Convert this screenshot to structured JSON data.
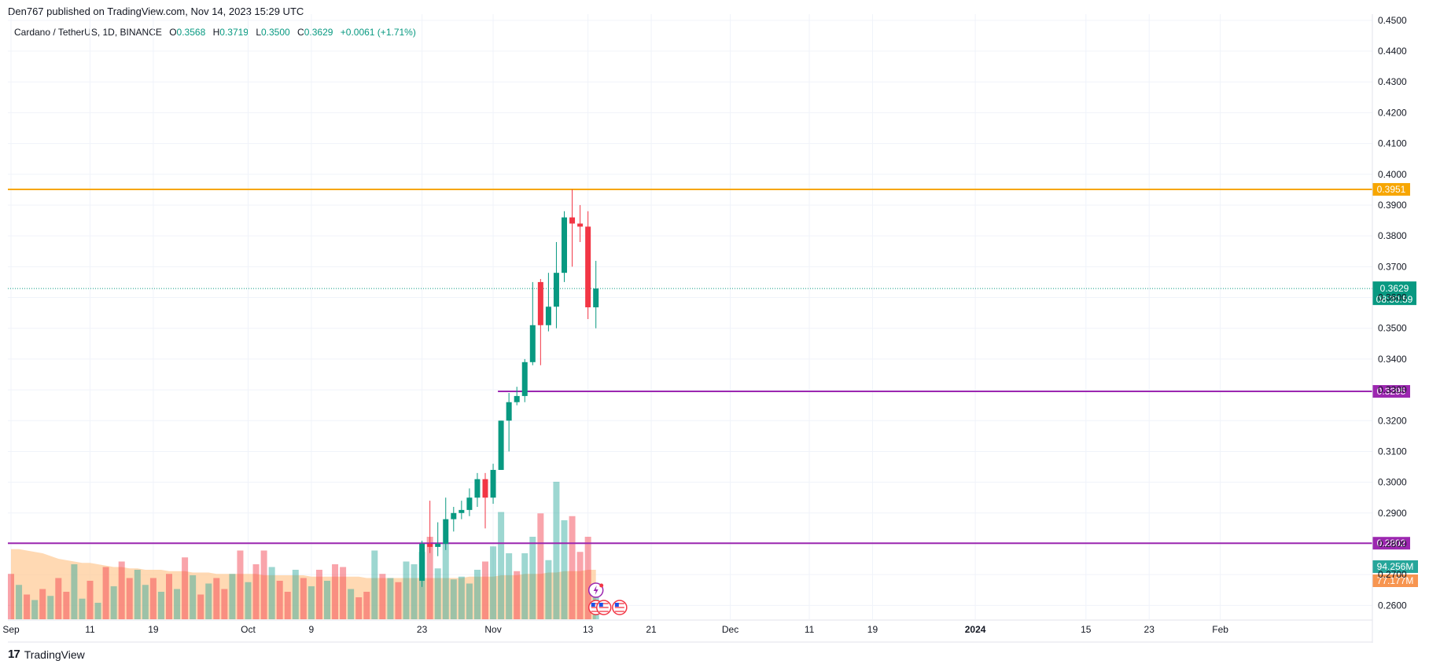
{
  "publisher": "Den767 published on TradingView.com, Nov 14, 2023 15:29 UTC",
  "legend": {
    "symbol": "Cardano / TetherUS, 1D, BINANCE",
    "o_label": "O",
    "o": "0.3568",
    "h_label": "H",
    "h": "0.3719",
    "l_label": "L",
    "l": "0.3500",
    "c_label": "C",
    "c": "0.3629",
    "change": "+0.0061 (+1.71%)"
  },
  "footer": {
    "brand": "TradingView",
    "logo_icon": "tradingview-logo-icon"
  },
  "chart_data": {
    "type": "candlestick",
    "colors": {
      "up": "#089981",
      "down": "#f23645",
      "orange": "#f7a600",
      "purple": "#9c27b0",
      "vol_ma": "#ffcc99"
    },
    "y_range": [
      0.2555,
      0.452
    ],
    "y_ticks": [
      "0.4500",
      "0.4400",
      "0.4300",
      "0.4200",
      "0.4100",
      "0.4000",
      "0.3900",
      "0.3800",
      "0.3700",
      "0.3600",
      "0.3500",
      "0.3400",
      "0.3300",
      "0.3200",
      "0.3100",
      "0.3000",
      "0.2900",
      "0.2800",
      "0.2700",
      "0.2600"
    ],
    "x_ticks": [
      {
        "label": "Sep",
        "day": 0
      },
      {
        "label": "11",
        "day": 10
      },
      {
        "label": "19",
        "day": 18
      },
      {
        "label": "Oct",
        "day": 30
      },
      {
        "label": "9",
        "day": 38
      },
      {
        "label": "23",
        "day": 52
      },
      {
        "label": "Nov",
        "day": 61
      },
      {
        "label": "13",
        "day": 73
      },
      {
        "label": "21",
        "day": 81
      },
      {
        "label": "Dec",
        "day": 91
      },
      {
        "label": "11",
        "day": 101
      },
      {
        "label": "19",
        "day": 109
      },
      {
        "label": "2024",
        "day": 122
      },
      {
        "label": "15",
        "day": 136
      },
      {
        "label": "23",
        "day": 144
      },
      {
        "label": "Feb",
        "day": 153
      }
    ],
    "candles": [
      {
        "d": 52,
        "o": 0.268,
        "h": 0.281,
        "l": 0.266,
        "c": 0.28
      },
      {
        "d": 53,
        "o": 0.28,
        "h": 0.294,
        "l": 0.277,
        "c": 0.279
      },
      {
        "d": 54,
        "o": 0.279,
        "h": 0.287,
        "l": 0.276,
        "c": 0.28
      },
      {
        "d": 55,
        "o": 0.28,
        "h": 0.295,
        "l": 0.278,
        "c": 0.288
      },
      {
        "d": 56,
        "o": 0.288,
        "h": 0.292,
        "l": 0.284,
        "c": 0.29
      },
      {
        "d": 57,
        "o": 0.29,
        "h": 0.294,
        "l": 0.288,
        "c": 0.291
      },
      {
        "d": 58,
        "o": 0.291,
        "h": 0.298,
        "l": 0.289,
        "c": 0.295
      },
      {
        "d": 59,
        "o": 0.295,
        "h": 0.303,
        "l": 0.292,
        "c": 0.301
      },
      {
        "d": 60,
        "o": 0.301,
        "h": 0.303,
        "l": 0.285,
        "c": 0.295
      },
      {
        "d": 61,
        "o": 0.295,
        "h": 0.306,
        "l": 0.293,
        "c": 0.304
      },
      {
        "d": 62,
        "o": 0.304,
        "h": 0.32,
        "l": 0.304,
        "c": 0.32
      },
      {
        "d": 63,
        "o": 0.32,
        "h": 0.329,
        "l": 0.31,
        "c": 0.326
      },
      {
        "d": 64,
        "o": 0.326,
        "h": 0.331,
        "l": 0.325,
        "c": 0.328
      },
      {
        "d": 65,
        "o": 0.328,
        "h": 0.34,
        "l": 0.326,
        "c": 0.339
      },
      {
        "d": 66,
        "o": 0.339,
        "h": 0.365,
        "l": 0.338,
        "c": 0.351
      },
      {
        "d": 67,
        "o": 0.365,
        "h": 0.366,
        "l": 0.338,
        "c": 0.351
      },
      {
        "d": 68,
        "o": 0.351,
        "h": 0.368,
        "l": 0.349,
        "c": 0.357
      },
      {
        "d": 69,
        "o": 0.357,
        "h": 0.378,
        "l": 0.35,
        "c": 0.368
      },
      {
        "d": 70,
        "o": 0.368,
        "h": 0.388,
        "l": 0.365,
        "c": 0.386
      },
      {
        "d": 71,
        "o": 0.386,
        "h": 0.3951,
        "l": 0.37,
        "c": 0.384
      },
      {
        "d": 72,
        "o": 0.384,
        "h": 0.39,
        "l": 0.378,
        "c": 0.383
      },
      {
        "d": 73,
        "o": 0.383,
        "h": 0.388,
        "l": 0.353,
        "c": 0.3568
      },
      {
        "d": 74,
        "o": 0.3568,
        "h": 0.3719,
        "l": 0.35,
        "c": 0.3629
      }
    ],
    "volume_max": 1.0,
    "volumes": [
      {
        "d": 0,
        "v": 0.33,
        "up": false
      },
      {
        "d": 1,
        "v": 0.25,
        "up": true
      },
      {
        "d": 2,
        "v": 0.18,
        "up": false
      },
      {
        "d": 3,
        "v": 0.14,
        "up": true
      },
      {
        "d": 4,
        "v": 0.22,
        "up": false
      },
      {
        "d": 5,
        "v": 0.17,
        "up": true
      },
      {
        "d": 6,
        "v": 0.3,
        "up": false
      },
      {
        "d": 7,
        "v": 0.2,
        "up": false
      },
      {
        "d": 8,
        "v": 0.4,
        "up": true
      },
      {
        "d": 9,
        "v": 0.15,
        "up": true
      },
      {
        "d": 10,
        "v": 0.28,
        "up": false
      },
      {
        "d": 11,
        "v": 0.12,
        "up": true
      },
      {
        "d": 12,
        "v": 0.38,
        "up": false
      },
      {
        "d": 13,
        "v": 0.24,
        "up": true
      },
      {
        "d": 14,
        "v": 0.42,
        "up": false
      },
      {
        "d": 15,
        "v": 0.3,
        "up": false
      },
      {
        "d": 16,
        "v": 0.36,
        "up": true
      },
      {
        "d": 17,
        "v": 0.25,
        "up": true
      },
      {
        "d": 18,
        "v": 0.3,
        "up": false
      },
      {
        "d": 19,
        "v": 0.2,
        "up": true
      },
      {
        "d": 20,
        "v": 0.33,
        "up": false
      },
      {
        "d": 21,
        "v": 0.22,
        "up": true
      },
      {
        "d": 22,
        "v": 0.45,
        "up": false
      },
      {
        "d": 23,
        "v": 0.32,
        "up": true
      },
      {
        "d": 24,
        "v": 0.18,
        "up": false
      },
      {
        "d": 25,
        "v": 0.26,
        "up": true
      },
      {
        "d": 26,
        "v": 0.3,
        "up": false
      },
      {
        "d": 27,
        "v": 0.22,
        "up": false
      },
      {
        "d": 28,
        "v": 0.33,
        "up": true
      },
      {
        "d": 29,
        "v": 0.5,
        "up": false
      },
      {
        "d": 30,
        "v": 0.27,
        "up": true
      },
      {
        "d": 31,
        "v": 0.4,
        "up": false
      },
      {
        "d": 32,
        "v": 0.5,
        "up": false
      },
      {
        "d": 33,
        "v": 0.38,
        "up": true
      },
      {
        "d": 34,
        "v": 0.28,
        "up": false
      },
      {
        "d": 35,
        "v": 0.2,
        "up": false
      },
      {
        "d": 36,
        "v": 0.36,
        "up": true
      },
      {
        "d": 37,
        "v": 0.3,
        "up": false
      },
      {
        "d": 38,
        "v": 0.24,
        "up": true
      },
      {
        "d": 39,
        "v": 0.36,
        "up": false
      },
      {
        "d": 40,
        "v": 0.28,
        "up": true
      },
      {
        "d": 41,
        "v": 0.4,
        "up": false
      },
      {
        "d": 42,
        "v": 0.38,
        "up": false
      },
      {
        "d": 43,
        "v": 0.22,
        "up": true
      },
      {
        "d": 44,
        "v": 0.16,
        "up": false
      },
      {
        "d": 45,
        "v": 0.2,
        "up": false
      },
      {
        "d": 46,
        "v": 0.5,
        "up": true
      },
      {
        "d": 47,
        "v": 0.33,
        "up": false
      },
      {
        "d": 48,
        "v": 0.3,
        "up": true
      },
      {
        "d": 49,
        "v": 0.27,
        "up": false
      },
      {
        "d": 50,
        "v": 0.42,
        "up": true
      },
      {
        "d": 51,
        "v": 0.4,
        "up": true
      },
      {
        "d": 52,
        "v": 0.49,
        "up": true
      },
      {
        "d": 53,
        "v": 0.6,
        "up": false
      },
      {
        "d": 54,
        "v": 0.37,
        "up": true
      },
      {
        "d": 55,
        "v": 0.55,
        "up": true
      },
      {
        "d": 56,
        "v": 0.29,
        "up": true
      },
      {
        "d": 57,
        "v": 0.31,
        "up": true
      },
      {
        "d": 58,
        "v": 0.26,
        "up": true
      },
      {
        "d": 59,
        "v": 0.36,
        "up": true
      },
      {
        "d": 60,
        "v": 0.42,
        "up": false
      },
      {
        "d": 61,
        "v": 0.53,
        "up": true
      },
      {
        "d": 62,
        "v": 0.78,
        "up": true
      },
      {
        "d": 63,
        "v": 0.48,
        "up": true
      },
      {
        "d": 64,
        "v": 0.35,
        "up": false
      },
      {
        "d": 65,
        "v": 0.48,
        "up": true
      },
      {
        "d": 66,
        "v": 0.6,
        "up": true
      },
      {
        "d": 67,
        "v": 0.77,
        "up": false
      },
      {
        "d": 68,
        "v": 0.43,
        "up": true
      },
      {
        "d": 69,
        "v": 1.0,
        "up": true
      },
      {
        "d": 70,
        "v": 0.72,
        "up": true
      },
      {
        "d": 71,
        "v": 0.75,
        "up": false
      },
      {
        "d": 72,
        "v": 0.49,
        "up": false
      },
      {
        "d": 73,
        "v": 0.6,
        "up": false
      },
      {
        "d": 74,
        "v": 0.22,
        "up": true
      }
    ],
    "volume_ma": [
      0.51,
      0.51,
      0.5,
      0.49,
      0.48,
      0.46,
      0.44,
      0.43,
      0.42,
      0.41,
      0.41,
      0.4,
      0.39,
      0.38,
      0.38,
      0.37,
      0.37,
      0.36,
      0.36,
      0.36,
      0.35,
      0.35,
      0.35,
      0.34,
      0.34,
      0.34,
      0.33,
      0.33,
      0.33,
      0.33,
      0.33,
      0.33,
      0.32,
      0.32,
      0.32,
      0.32,
      0.32,
      0.32,
      0.31,
      0.31,
      0.31,
      0.31,
      0.31,
      0.31,
      0.31,
      0.3,
      0.3,
      0.3,
      0.3,
      0.3,
      0.3,
      0.3,
      0.3,
      0.3,
      0.3,
      0.3,
      0.3,
      0.3,
      0.31,
      0.31,
      0.31,
      0.31,
      0.32,
      0.32,
      0.32,
      0.33,
      0.33,
      0.33,
      0.34,
      0.34,
      0.35,
      0.35,
      0.35,
      0.36,
      0.36
    ],
    "levels": [
      {
        "name": "resistance",
        "value": 0.3951,
        "label": "0.3951",
        "color": "#f7a600",
        "start": 0
      },
      {
        "name": "mid-support",
        "value": 0.3295,
        "label": "0.3295",
        "color": "#9c27b0",
        "start": 62
      },
      {
        "name": "low-support",
        "value": 0.2802,
        "label": "0.2802",
        "color": "#9c27b0",
        "start": 0
      }
    ],
    "current_price": {
      "value": 0.3629,
      "label": "0.3629",
      "countdown": "08:30:59"
    },
    "volume_labels": [
      {
        "text": "94.256M",
        "color": "#26a69a"
      },
      {
        "text": "77.177M",
        "color": "#f79550"
      }
    ],
    "event_icons": [
      {
        "d": 74,
        "row": 0,
        "icon": "lightning-icon"
      },
      {
        "d": 74,
        "row": 1,
        "icon": "us-flag-icon"
      },
      {
        "d": 75,
        "row": 1,
        "icon": "us-flag-icon"
      },
      {
        "d": 77,
        "row": 1,
        "icon": "us-flag-icon"
      }
    ]
  }
}
